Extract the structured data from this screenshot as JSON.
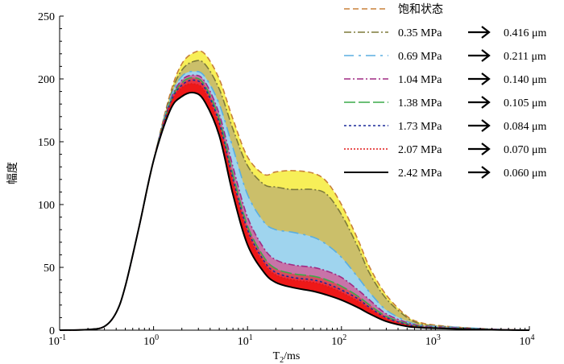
{
  "chart_data": {
    "type": "area",
    "title": "",
    "xlabel": "T",
    "xlabel_sub": "2",
    "xlabel_unit": "/ms",
    "ylabel": "幅度",
    "xscale": "log",
    "xlim": [
      0.1,
      10000
    ],
    "ylim": [
      0,
      250
    ],
    "yticks": [
      0,
      50,
      100,
      150,
      200,
      250
    ],
    "xticks": [
      {
        "base": "10",
        "exp": "-1",
        "value": 0.1
      },
      {
        "base": "10",
        "exp": "0",
        "value": 1
      },
      {
        "base": "10",
        "exp": "1",
        "value": 10
      },
      {
        "base": "10",
        "exp": "2",
        "value": 100
      },
      {
        "base": "10",
        "exp": "3",
        "value": 1000
      },
      {
        "base": "10",
        "exp": "4",
        "value": 10000
      }
    ],
    "x": [
      0.1,
      0.2,
      0.3,
      0.4,
      0.5,
      0.7,
      1.0,
      1.5,
      2.0,
      2.7,
      3.5,
      5,
      7,
      10,
      15,
      20,
      30,
      50,
      70,
      100,
      150,
      200,
      300,
      500,
      700,
      1000,
      2000,
      5000,
      10000
    ],
    "series": [
      {
        "name": "饱和状态",
        "pressure": "",
        "radius": "",
        "color": "#c8803a",
        "fill": "#f7ef58",
        "dash": "7,4",
        "values": [
          0,
          0.5,
          3,
          14,
          35,
          82,
          135,
          188,
          212,
          221,
          220,
          200,
          168,
          138,
          124,
          126,
          127,
          125,
          118,
          100,
          72,
          50,
          28,
          11,
          6,
          4,
          2,
          0.5,
          0
        ]
      },
      {
        "name": "",
        "pressure": "0.35 MPa",
        "radius": "0.416 μm",
        "color": "#7d7a3a",
        "fill": "#cbbf6a",
        "dash": "9,3,2,3",
        "values": [
          0,
          0.5,
          3,
          14,
          35,
          82,
          135,
          186,
          207,
          214,
          212,
          192,
          160,
          131,
          116,
          114,
          112,
          112,
          108,
          92,
          66,
          45,
          25,
          10,
          5,
          3.5,
          2,
          0.5,
          0
        ]
      },
      {
        "name": "",
        "pressure": "0.69 MPa",
        "radius": "0.211 μm",
        "color": "#5aaee0",
        "fill": "#9fd4ee",
        "dash": "12,6,3,6",
        "values": [
          0,
          0.5,
          3,
          14,
          35,
          82,
          135,
          184,
          202,
          206,
          202,
          180,
          145,
          108,
          86,
          80,
          78,
          74,
          68,
          58,
          42,
          30,
          16,
          7,
          4,
          3,
          2,
          0.5,
          0
        ]
      },
      {
        "name": "",
        "pressure": "1.04 MPa",
        "radius": "0.140 μm",
        "color": "#a02a84",
        "fill": "#c873a8",
        "dash": "8,3,2,3",
        "values": [
          0,
          0.5,
          3,
          14,
          35,
          82,
          135,
          182,
          199,
          203,
          198,
          172,
          130,
          90,
          65,
          56,
          52,
          50,
          47,
          42,
          32,
          24,
          13,
          6,
          3.5,
          2.5,
          1.5,
          0.5,
          0
        ]
      },
      {
        "name": "",
        "pressure": "1.38 MPa",
        "radius": "0.105 μm",
        "color": "#3aaa4a",
        "fill": "#d64c5e",
        "dash": "14,4",
        "values": [
          0,
          0.5,
          3,
          14,
          35,
          82,
          135,
          181,
          197,
          201,
          195,
          168,
          124,
          83,
          58,
          49,
          45,
          43,
          40,
          35,
          27,
          20,
          11,
          5,
          3,
          2,
          1.2,
          0.3,
          0
        ]
      },
      {
        "name": "",
        "pressure": "1.73 MPa",
        "radius": "0.084 μm",
        "color": "#1a2a9a",
        "fill": "#ea3040",
        "dash": "3,3",
        "values": [
          0,
          0.5,
          3,
          14,
          35,
          82,
          135,
          180,
          195,
          199,
          193,
          165,
          120,
          80,
          55,
          46,
          42,
          40,
          37,
          32,
          25,
          18,
          10,
          4.5,
          2.8,
          2,
          1,
          0.3,
          0
        ]
      },
      {
        "name": "",
        "pressure": "2.07 MPa",
        "radius": "0.070 μm",
        "color": "#e01818",
        "fill": "#ee1818",
        "dash": "2,2",
        "values": [
          0,
          0.5,
          3,
          14,
          35,
          82,
          135,
          179,
          193,
          196,
          190,
          162,
          117,
          77,
          53,
          44,
          40,
          38,
          35,
          30,
          23,
          17,
          9,
          4,
          2.5,
          1.8,
          1,
          0.3,
          0
        ]
      },
      {
        "name": "",
        "pressure": "2.42 MPa",
        "radius": "0.060 μm",
        "color": "#000000",
        "fill": "#ffffff",
        "dash": "",
        "values": [
          0,
          0.5,
          3,
          14,
          35,
          82,
          135,
          175,
          186,
          189,
          182,
          155,
          108,
          68,
          46,
          38,
          34,
          31,
          28,
          24,
          18,
          13,
          7,
          3,
          2,
          1.5,
          0.8,
          0.2,
          0
        ]
      }
    ],
    "legend_position": "top-right"
  }
}
